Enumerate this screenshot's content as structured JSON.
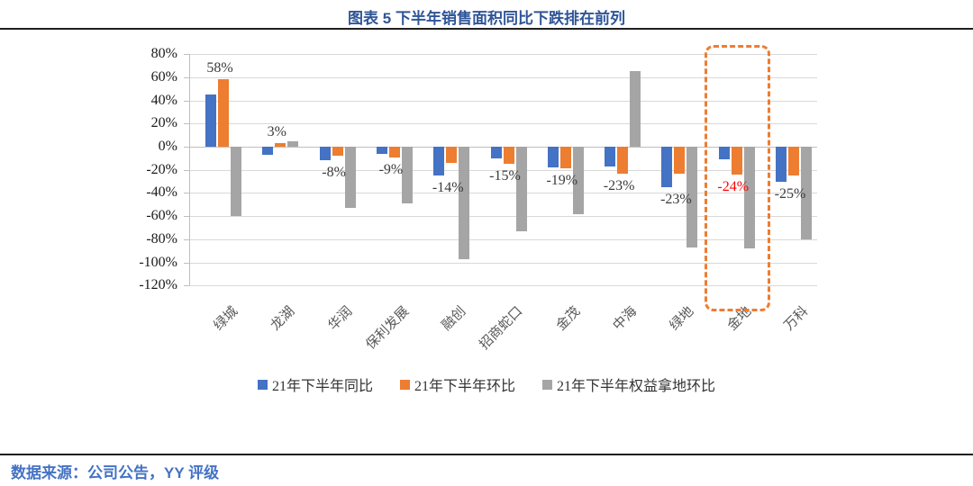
{
  "header": {
    "title": "图表 5 下半年销售面积同比下跌排在前列",
    "title_color": "#2F5597"
  },
  "footer": {
    "source": "数据来源：公司公告，YY 评级",
    "source_color": "#4472C4"
  },
  "chart_data": {
    "type": "bar",
    "title": "图表 5 下半年销售面积同比下跌排在前列",
    "categories": [
      "绿城",
      "龙湖",
      "华润",
      "保利发展",
      "融创",
      "招商蛇口",
      "金茂",
      "中海",
      "绿地",
      "金地",
      "万科"
    ],
    "series": [
      {
        "name": "21年下半年同比",
        "color": "#4472C4",
        "values": [
          45,
          -7,
          -12,
          -6,
          -25,
          -10,
          -18,
          -17,
          -35,
          -11,
          -30
        ]
      },
      {
        "name": "21年下半年环比",
        "color": "#ED7D31",
        "values": [
          58,
          3,
          -8,
          -9,
          -14,
          -15,
          -19,
          -23,
          -23,
          -24,
          -25
        ]
      },
      {
        "name": "21年下半年权益拿地环比",
        "color": "#A5A5A5",
        "values": [
          -60,
          5,
          -53,
          -49,
          -97,
          -73,
          -58,
          65,
          -87,
          -88,
          -80
        ]
      }
    ],
    "data_labels": {
      "for_series": "21年下半年环比",
      "texts": [
        "58%",
        "3%",
        "-8%",
        "-9%",
        "-14%",
        "-15%",
        "-19%",
        "-23%",
        "-23%",
        "-24%",
        "-25%"
      ],
      "default_color": "#3b3b3b",
      "highlight_index": 9,
      "highlight_color": "#FF0000"
    },
    "y_ticks": [
      "80%",
      "60%",
      "40%",
      "20%",
      "0%",
      "-20%",
      "-40%",
      "-60%",
      "-80%",
      "-100%",
      "-120%"
    ],
    "ylim": [
      -120,
      80
    ],
    "grid": true,
    "legend_position": "bottom",
    "highlight_box": {
      "category": "金地",
      "category_index": 9,
      "color": "#ED7D31"
    }
  }
}
